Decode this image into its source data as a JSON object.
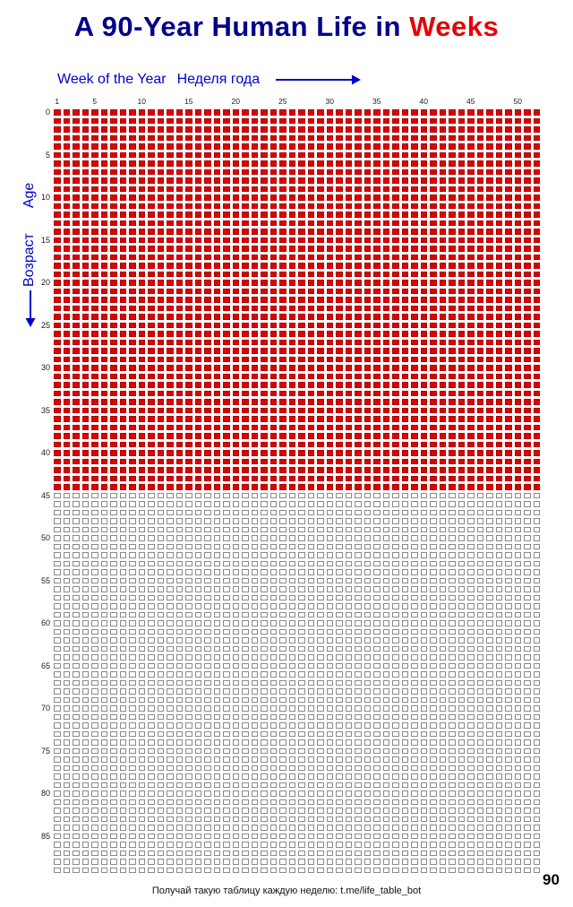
{
  "title": {
    "prefix": "A 90-Year Human Life in",
    "accent": "Weeks"
  },
  "axes": {
    "week_axis_label_en": "Week of the Year",
    "week_axis_label_ru": "Неделя года",
    "age_axis_label_ru": "Возраст",
    "age_axis_label_en": "Age",
    "week_ticks": [
      1,
      5,
      10,
      15,
      20,
      25,
      30,
      35,
      40,
      45,
      50
    ],
    "age_ticks": [
      0,
      5,
      10,
      15,
      20,
      25,
      30,
      35,
      40,
      45,
      50,
      55,
      60,
      65,
      70,
      75,
      80,
      85
    ],
    "age_final_label": "90"
  },
  "footer": {
    "caption": "Получай такую таблицу каждую неделю: t.me/life_table_bot"
  },
  "colors": {
    "title_blue": "#00008b",
    "accent_red": "#e60000",
    "axis_blue": "#0000cd",
    "lived_fill": "#e00000",
    "lived_border": "#b00000",
    "future_border": "#8a8a8a"
  },
  "chart_data": {
    "type": "heatmap",
    "title": "A 90-Year Human Life in Weeks",
    "xlabel": "Week of the Year (Неделя года)",
    "ylabel": "Возраст (Age)",
    "weeks_per_year": 52,
    "years_total": 90,
    "filled_years": 45,
    "filled_weeks": 2340,
    "total_weeks": 4680,
    "x_ticks": [
      1,
      5,
      10,
      15,
      20,
      25,
      30,
      35,
      40,
      45,
      50
    ],
    "y_ticks": [
      0,
      5,
      10,
      15,
      20,
      25,
      30,
      35,
      40,
      45,
      50,
      55,
      60,
      65,
      70,
      75,
      80,
      85,
      90
    ],
    "legend": "red filled square = week lived (ages 0-44), outlined white square = week remaining (ages 45-89)",
    "grid_on": false,
    "legend_position": "none"
  }
}
